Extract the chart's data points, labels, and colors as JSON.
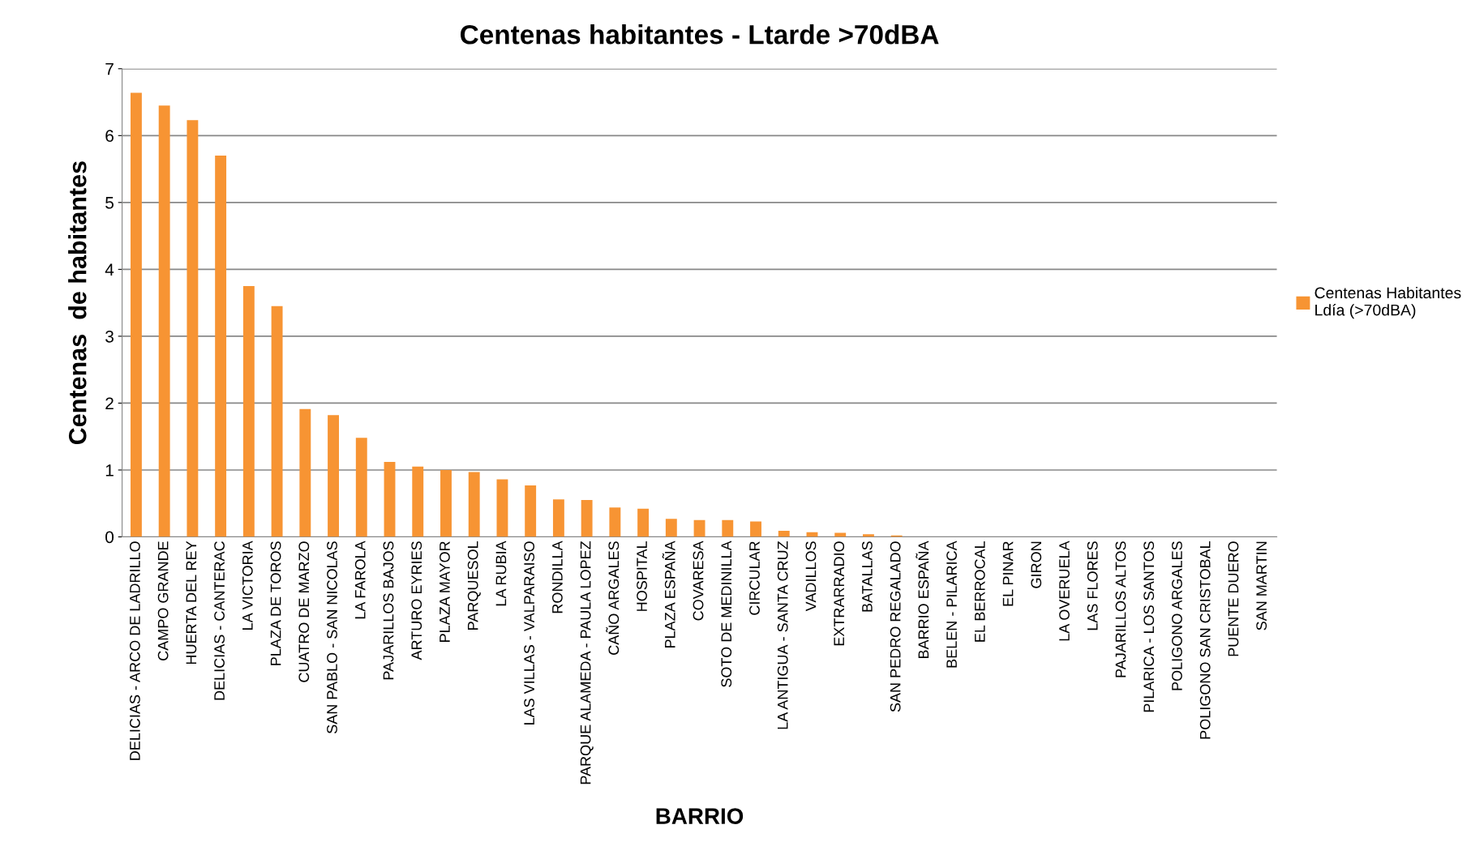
{
  "chart_data": {
    "type": "bar",
    "title": "Centenas habitantes - Ltarde >70dBA",
    "xlabel": "BARRIO",
    "ylabel": "Centenas  de habitantes",
    "categories": [
      "DELICIAS - ARCO DE LADRILLO",
      "CAMPO GRANDE",
      "HUERTA DEL REY",
      "DELICIAS - CANTERAC",
      "LA VICTORIA",
      "PLAZA DE TOROS",
      "CUATRO DE MARZO",
      "SAN PABLO - SAN NICOLAS",
      "LA FAROLA",
      "PAJARILLOS BAJOS",
      "ARTURO EYRIES",
      "PLAZA MAYOR",
      "PARQUESOL",
      "LA RUBIA",
      "LAS VILLAS - VALPARAISO",
      "RONDILLA",
      "PARQUE ALAMEDA - PAULA LOPEZ",
      "CAÑO ARGALES",
      "HOSPITAL",
      "PLAZA ESPAÑA",
      "COVARESA",
      "SOTO DE MEDINILLA",
      "CIRCULAR",
      "LA ANTIGUA - SANTA CRUZ",
      "VADILLOS",
      "EXTRARRADIO",
      "BATALLAS",
      "SAN PEDRO REGALADO",
      "BARRIO ESPAÑA",
      "BELEN - PILARICA",
      "EL BERROCAL",
      "EL PINAR",
      "GIRON",
      "LA OVERUELA",
      "LAS FLORES",
      "PAJARILLOS ALTOS",
      "PILARICA - LOS SANTOS",
      "POLIGONO ARGALES",
      "POLIGONO SAN CRISTOBAL",
      "PUENTE DUERO",
      "SAN MARTIN"
    ],
    "series": [
      {
        "name": "Centenas Habitantes Ldía (>70dBA)",
        "color": "#f79433",
        "values": [
          6.64,
          6.45,
          6.23,
          5.7,
          3.75,
          3.45,
          1.91,
          1.82,
          1.48,
          1.12,
          1.05,
          1.0,
          0.97,
          0.86,
          0.77,
          0.56,
          0.55,
          0.44,
          0.42,
          0.27,
          0.25,
          0.25,
          0.23,
          0.09,
          0.07,
          0.06,
          0.04,
          0.02,
          0,
          0,
          0,
          0,
          0,
          0,
          0,
          0,
          0,
          0,
          0,
          0,
          0
        ]
      }
    ],
    "ylim": [
      0,
      7
    ],
    "yticks": [
      0,
      1,
      2,
      3,
      4,
      5,
      6,
      7
    ],
    "grid": "y",
    "legend": "right"
  }
}
